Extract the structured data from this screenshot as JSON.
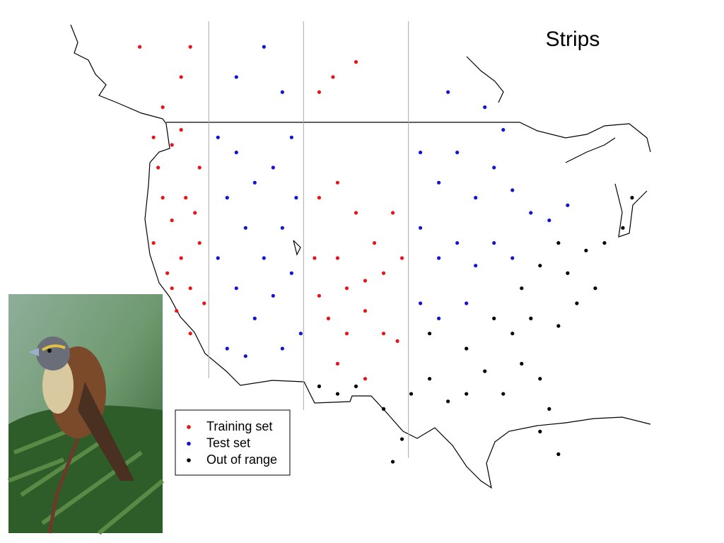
{
  "chart_data": {
    "type": "scatter",
    "title": "Strips",
    "xlim": [
      -133,
      -70
    ],
    "ylim": [
      24.3,
      55.7
    ],
    "strip_boundaries": [
      -118,
      -107.7,
      -96.3
    ],
    "series": [
      {
        "name": "Training set",
        "color": "#e8141a",
        "x": [
          -124,
          -123.5,
          -122,
          -121,
          -123,
          -122,
          -120.5,
          -119,
          -124,
          -122.5,
          -121,
          -120,
          -119,
          -121.5,
          -120,
          -118.5,
          -122,
          -119.5,
          -123,
          -121,
          -120,
          -125.5,
          -106,
          -104,
          -102,
          -106.5,
          -104,
          -103,
          -101,
          -99,
          -97,
          -105,
          -103,
          -101,
          -99,
          -97.5,
          -104,
          -101,
          -106,
          -100,
          -98,
          -104.5,
          -102,
          -106
        ],
        "y": [
          48,
          46,
          47.5,
          48.5,
          44,
          42.5,
          44,
          46,
          41,
          39,
          40,
          38,
          41,
          36.5,
          35,
          37,
          38,
          43,
          50,
          52,
          54,
          54,
          44,
          45,
          43,
          40,
          40,
          38,
          38.5,
          39,
          40,
          36,
          35,
          36.5,
          35,
          34.5,
          33,
          32,
          37.5,
          41,
          43,
          52,
          53,
          51
        ]
      },
      {
        "name": "Test set",
        "color": "#1414d2",
        "x": [
          -117,
          -115,
          -113,
          -111,
          -109,
          -116,
          -114,
          -112,
          -110,
          -108.5,
          -117,
          -115,
          -113,
          -111,
          -109,
          -116,
          -114,
          -110,
          -108,
          -115,
          -112,
          -110,
          -95,
          -93,
          -91,
          -89,
          -87,
          -85,
          -83,
          -81,
          -79,
          -95,
          -93,
          -91,
          -89,
          -87,
          -85,
          -95,
          -93,
          -90,
          -88,
          -92,
          -86
        ],
        "y": [
          48,
          47,
          45,
          46,
          48,
          44,
          42,
          40,
          42,
          44,
          40,
          38,
          36,
          37.5,
          39,
          34,
          33.5,
          34,
          35,
          52,
          54,
          51,
          47,
          45,
          47,
          44,
          46,
          44.5,
          43,
          42.5,
          43.5,
          42,
          40,
          41,
          39.5,
          41,
          40,
          37,
          36,
          37,
          50,
          51,
          48.5
        ]
      },
      {
        "name": "Out of range",
        "color": "#000000",
        "x": [
          -106,
          -104,
          -102,
          -99,
          -97,
          -98,
          -96,
          -94,
          -92,
          -90,
          -88,
          -86,
          -84,
          -82,
          -81,
          -80,
          -82,
          -85,
          -83,
          -80,
          -78,
          -76,
          -79,
          -77,
          -75,
          -73,
          -72,
          -84,
          -82,
          -80,
          -94,
          -90,
          -87
        ],
        "y": [
          31.5,
          31,
          31.5,
          30,
          28,
          26.5,
          31,
          32,
          30.5,
          31,
          32.5,
          31,
          33,
          32,
          30,
          27,
          28.5,
          35,
          36,
          35.5,
          37,
          38,
          39,
          40.5,
          41,
          42,
          44,
          38,
          39.5,
          41,
          35,
          34,
          36
        ]
      }
    ]
  }
}
